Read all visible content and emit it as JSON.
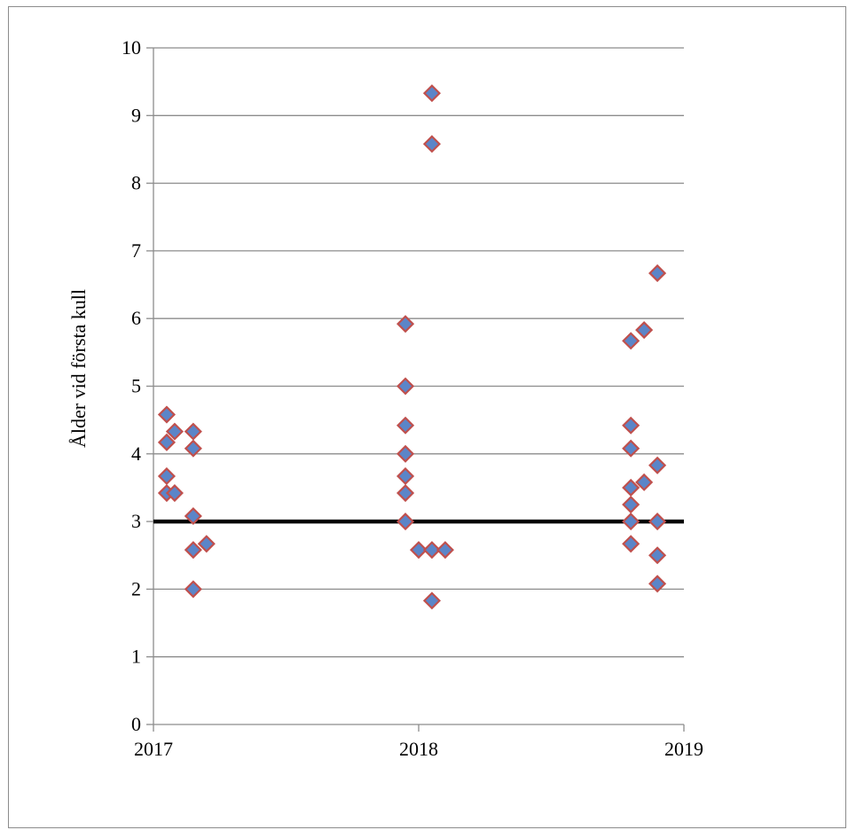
{
  "chart_data": {
    "type": "scatter",
    "title": "",
    "xlabel": "",
    "ylabel": "Ålder vid första kull",
    "xlim": [
      2017,
      2019
    ],
    "ylim": [
      0,
      10
    ],
    "x_ticks": [
      "2017",
      "2018",
      "2019"
    ],
    "y_ticks": [
      "0",
      "1",
      "2",
      "3",
      "4",
      "5",
      "6",
      "7",
      "8",
      "9",
      "10"
    ],
    "grid": "horizontal",
    "legend": "none",
    "reference_line": {
      "y": 3,
      "color": "#000000"
    },
    "marker": {
      "shape": "diamond",
      "fill": "#5b85c8",
      "edge": "#c0504d"
    },
    "series": [
      {
        "points": [
          [
            2017.05,
            4.58
          ],
          [
            2017.05,
            4.17
          ],
          [
            2017.05,
            3.67
          ],
          [
            2017.05,
            3.42
          ],
          [
            2017.08,
            4.33
          ],
          [
            2017.08,
            3.42
          ],
          [
            2017.15,
            4.33
          ],
          [
            2017.15,
            4.08
          ],
          [
            2017.15,
            3.08
          ],
          [
            2017.15,
            2.58
          ],
          [
            2017.15,
            2.0
          ],
          [
            2017.2,
            2.67
          ],
          [
            2017.95,
            5.92
          ],
          [
            2017.95,
            5.0
          ],
          [
            2017.95,
            4.42
          ],
          [
            2017.95,
            4.0
          ],
          [
            2017.95,
            3.67
          ],
          [
            2017.95,
            3.42
          ],
          [
            2017.95,
            3.0
          ],
          [
            2018.0,
            2.58
          ],
          [
            2018.05,
            9.33
          ],
          [
            2018.05,
            8.58
          ],
          [
            2018.05,
            2.58
          ],
          [
            2018.05,
            1.83
          ],
          [
            2018.1,
            2.58
          ],
          [
            2018.8,
            5.67
          ],
          [
            2018.8,
            4.42
          ],
          [
            2018.8,
            4.08
          ],
          [
            2018.8,
            3.5
          ],
          [
            2018.8,
            3.25
          ],
          [
            2018.8,
            3.0
          ],
          [
            2018.8,
            2.67
          ],
          [
            2018.85,
            5.83
          ],
          [
            2018.85,
            3.58
          ],
          [
            2018.9,
            6.67
          ],
          [
            2018.9,
            3.83
          ],
          [
            2018.9,
            3.0
          ],
          [
            2018.9,
            2.5
          ],
          [
            2018.9,
            2.08
          ]
        ]
      }
    ]
  }
}
